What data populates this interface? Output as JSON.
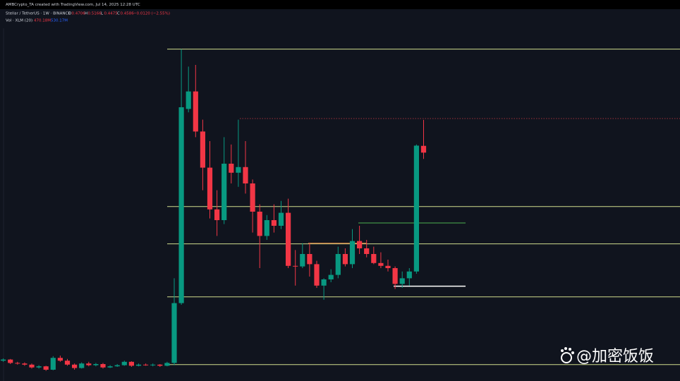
{
  "header": {
    "credit": "AMBCrypto_TA created with TradingView.com, Jul 14, 2025 12:28 UTC",
    "symbol": "Stellar / TetherUS · 1W · BINANCE",
    "ohlc": [
      {
        "key": "O",
        "value": "0.4706"
      },
      {
        "key": "H",
        "value": "0.5166"
      },
      {
        "key": "L",
        "value": "0.4475"
      },
      {
        "key": "C",
        "value": "0.4586"
      }
    ],
    "change": "−0.0120 (−2.55%)",
    "volume_label": "Vol · XLM (20)",
    "volume_values": [
      "470.18M",
      "530.17M"
    ]
  },
  "chart_data": {
    "type": "candlestick",
    "ylim": [
      0.054,
      0.679
    ],
    "up_color": "#089981",
    "down_color": "#f23645",
    "open": [
      0.09,
      0.092,
      0.086,
      0.085,
      0.083,
      0.078,
      0.08,
      0.074,
      0.095,
      0.09,
      0.083,
      0.077,
      0.085,
      0.082,
      0.084,
      0.078,
      0.08,
      0.082,
      0.088,
      0.081,
      0.083,
      0.082,
      0.083,
      0.081,
      0.086,
      0.192,
      0.536,
      0.567,
      0.496,
      0.432,
      0.358,
      0.339,
      0.439,
      0.423,
      0.433,
      0.404,
      0.354,
      0.311,
      0.339,
      0.329,
      0.352,
      0.258,
      0.257,
      0.279,
      0.261,
      0.223,
      0.234,
      0.242,
      0.279,
      0.261,
      0.302,
      0.289,
      0.279,
      0.263,
      0.258,
      0.254,
      0.226,
      0.236,
      0.248,
      0.4706
    ],
    "high": [
      0.094,
      0.093,
      0.088,
      0.087,
      0.085,
      0.082,
      0.081,
      0.098,
      0.099,
      0.093,
      0.085,
      0.087,
      0.088,
      0.086,
      0.086,
      0.082,
      0.084,
      0.09,
      0.089,
      0.085,
      0.085,
      0.085,
      0.084,
      0.088,
      0.236,
      0.642,
      0.611,
      0.614,
      0.517,
      0.479,
      0.392,
      0.486,
      0.473,
      0.517,
      0.479,
      0.411,
      0.367,
      0.348,
      0.367,
      0.373,
      0.377,
      0.286,
      0.298,
      0.298,
      0.267,
      0.236,
      0.252,
      0.292,
      0.289,
      0.323,
      0.329,
      0.304,
      0.292,
      0.282,
      0.269,
      0.257,
      0.248,
      0.254,
      0.473,
      0.5166
    ],
    "low": [
      0.088,
      0.084,
      0.083,
      0.081,
      0.076,
      0.076,
      0.072,
      0.073,
      0.088,
      0.081,
      0.074,
      0.076,
      0.08,
      0.08,
      0.076,
      0.077,
      0.079,
      0.081,
      0.079,
      0.08,
      0.081,
      0.08,
      0.079,
      0.08,
      0.082,
      0.189,
      0.53,
      0.486,
      0.392,
      0.342,
      0.311,
      0.332,
      0.404,
      0.398,
      0.386,
      0.317,
      0.254,
      0.304,
      0.317,
      0.323,
      0.254,
      0.223,
      0.254,
      0.239,
      0.219,
      0.198,
      0.229,
      0.236,
      0.257,
      0.254,
      0.279,
      0.273,
      0.261,
      0.254,
      0.248,
      0.217,
      0.219,
      0.223,
      0.244,
      0.4475
    ],
    "close": [
      0.092,
      0.086,
      0.085,
      0.083,
      0.078,
      0.08,
      0.074,
      0.095,
      0.09,
      0.083,
      0.077,
      0.085,
      0.082,
      0.084,
      0.078,
      0.08,
      0.082,
      0.088,
      0.081,
      0.083,
      0.082,
      0.083,
      0.081,
      0.086,
      0.192,
      0.539,
      0.567,
      0.496,
      0.432,
      0.358,
      0.339,
      0.439,
      0.423,
      0.433,
      0.404,
      0.354,
      0.311,
      0.339,
      0.329,
      0.352,
      0.258,
      0.257,
      0.279,
      0.261,
      0.223,
      0.234,
      0.242,
      0.279,
      0.261,
      0.302,
      0.289,
      0.279,
      0.263,
      0.258,
      0.254,
      0.226,
      0.236,
      0.248,
      0.471,
      0.4586
    ],
    "levels": [
      {
        "value": 0.642,
        "color": "#cfdc8c"
      },
      {
        "value": 0.363,
        "color": "#cfdc8c"
      },
      {
        "value": 0.297,
        "color": "#cfdc8c"
      },
      {
        "value": 0.203,
        "color": "#cfdc8c"
      },
      {
        "value": 0.083,
        "color": "#cfdc8c"
      },
      {
        "value": 0.519,
        "color": "#9c2f3a"
      },
      {
        "value": 0.298,
        "color": "#f0883e"
      },
      {
        "value": 0.334,
        "color": "#4caf50"
      },
      {
        "value": 0.222,
        "color": "#ffffff"
      }
    ]
  },
  "watermark": "@加密饭饭"
}
